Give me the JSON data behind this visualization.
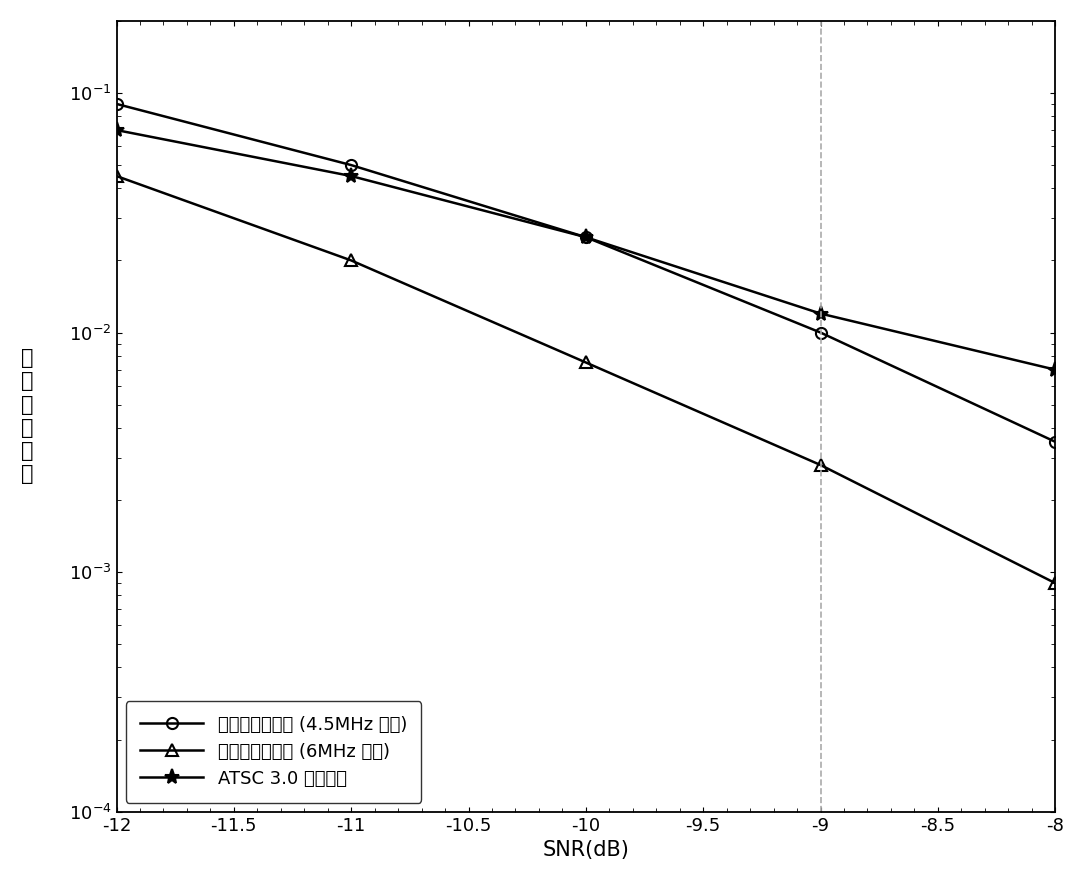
{
  "title": "",
  "xlabel": "SNR(dB)",
  "ylabel": "解信令错误率",
  "xlim": [
    -12,
    -8
  ],
  "ylim": [
    0.0001,
    0.2
  ],
  "xticks": [
    -12,
    -11.5,
    -11,
    -10.5,
    -10,
    -9.5,
    -9,
    -8.5,
    -8
  ],
  "series": [
    {
      "label": "所提的前导符号 (4.5MHz 带宽)",
      "x": [
        -12,
        -11,
        -10,
        -9,
        -8
      ],
      "y": [
        0.09,
        0.05,
        0.025,
        0.01,
        0.0035
      ],
      "marker": "o",
      "color": "#000000",
      "linewidth": 1.8,
      "markersize": 8,
      "fillstyle": "none"
    },
    {
      "label": "所提的前导符号 (6MHz 带宽)",
      "x": [
        -12,
        -11,
        -10,
        -9,
        -8
      ],
      "y": [
        0.045,
        0.02,
        0.0075,
        0.0028,
        0.0009
      ],
      "marker": "^",
      "color": "#000000",
      "linewidth": 1.8,
      "markersize": 8,
      "fillstyle": "none"
    },
    {
      "label": "ATSC 3.0 前导符号",
      "x": [
        -12,
        -11,
        -10,
        -9,
        -8
      ],
      "y": [
        0.07,
        0.045,
        0.025,
        0.012,
        0.007
      ],
      "marker": "*",
      "color": "#000000",
      "linewidth": 1.8,
      "markersize": 11,
      "fillstyle": "full"
    }
  ],
  "vline_x": -9,
  "vline_style": "--",
  "vline_color": "#aaaaaa",
  "legend_loc": "lower left",
  "legend_fontsize": 13,
  "xlabel_fontsize": 15,
  "ylabel_fontsize": 15,
  "tick_fontsize": 13,
  "background_color": "#ffffff"
}
